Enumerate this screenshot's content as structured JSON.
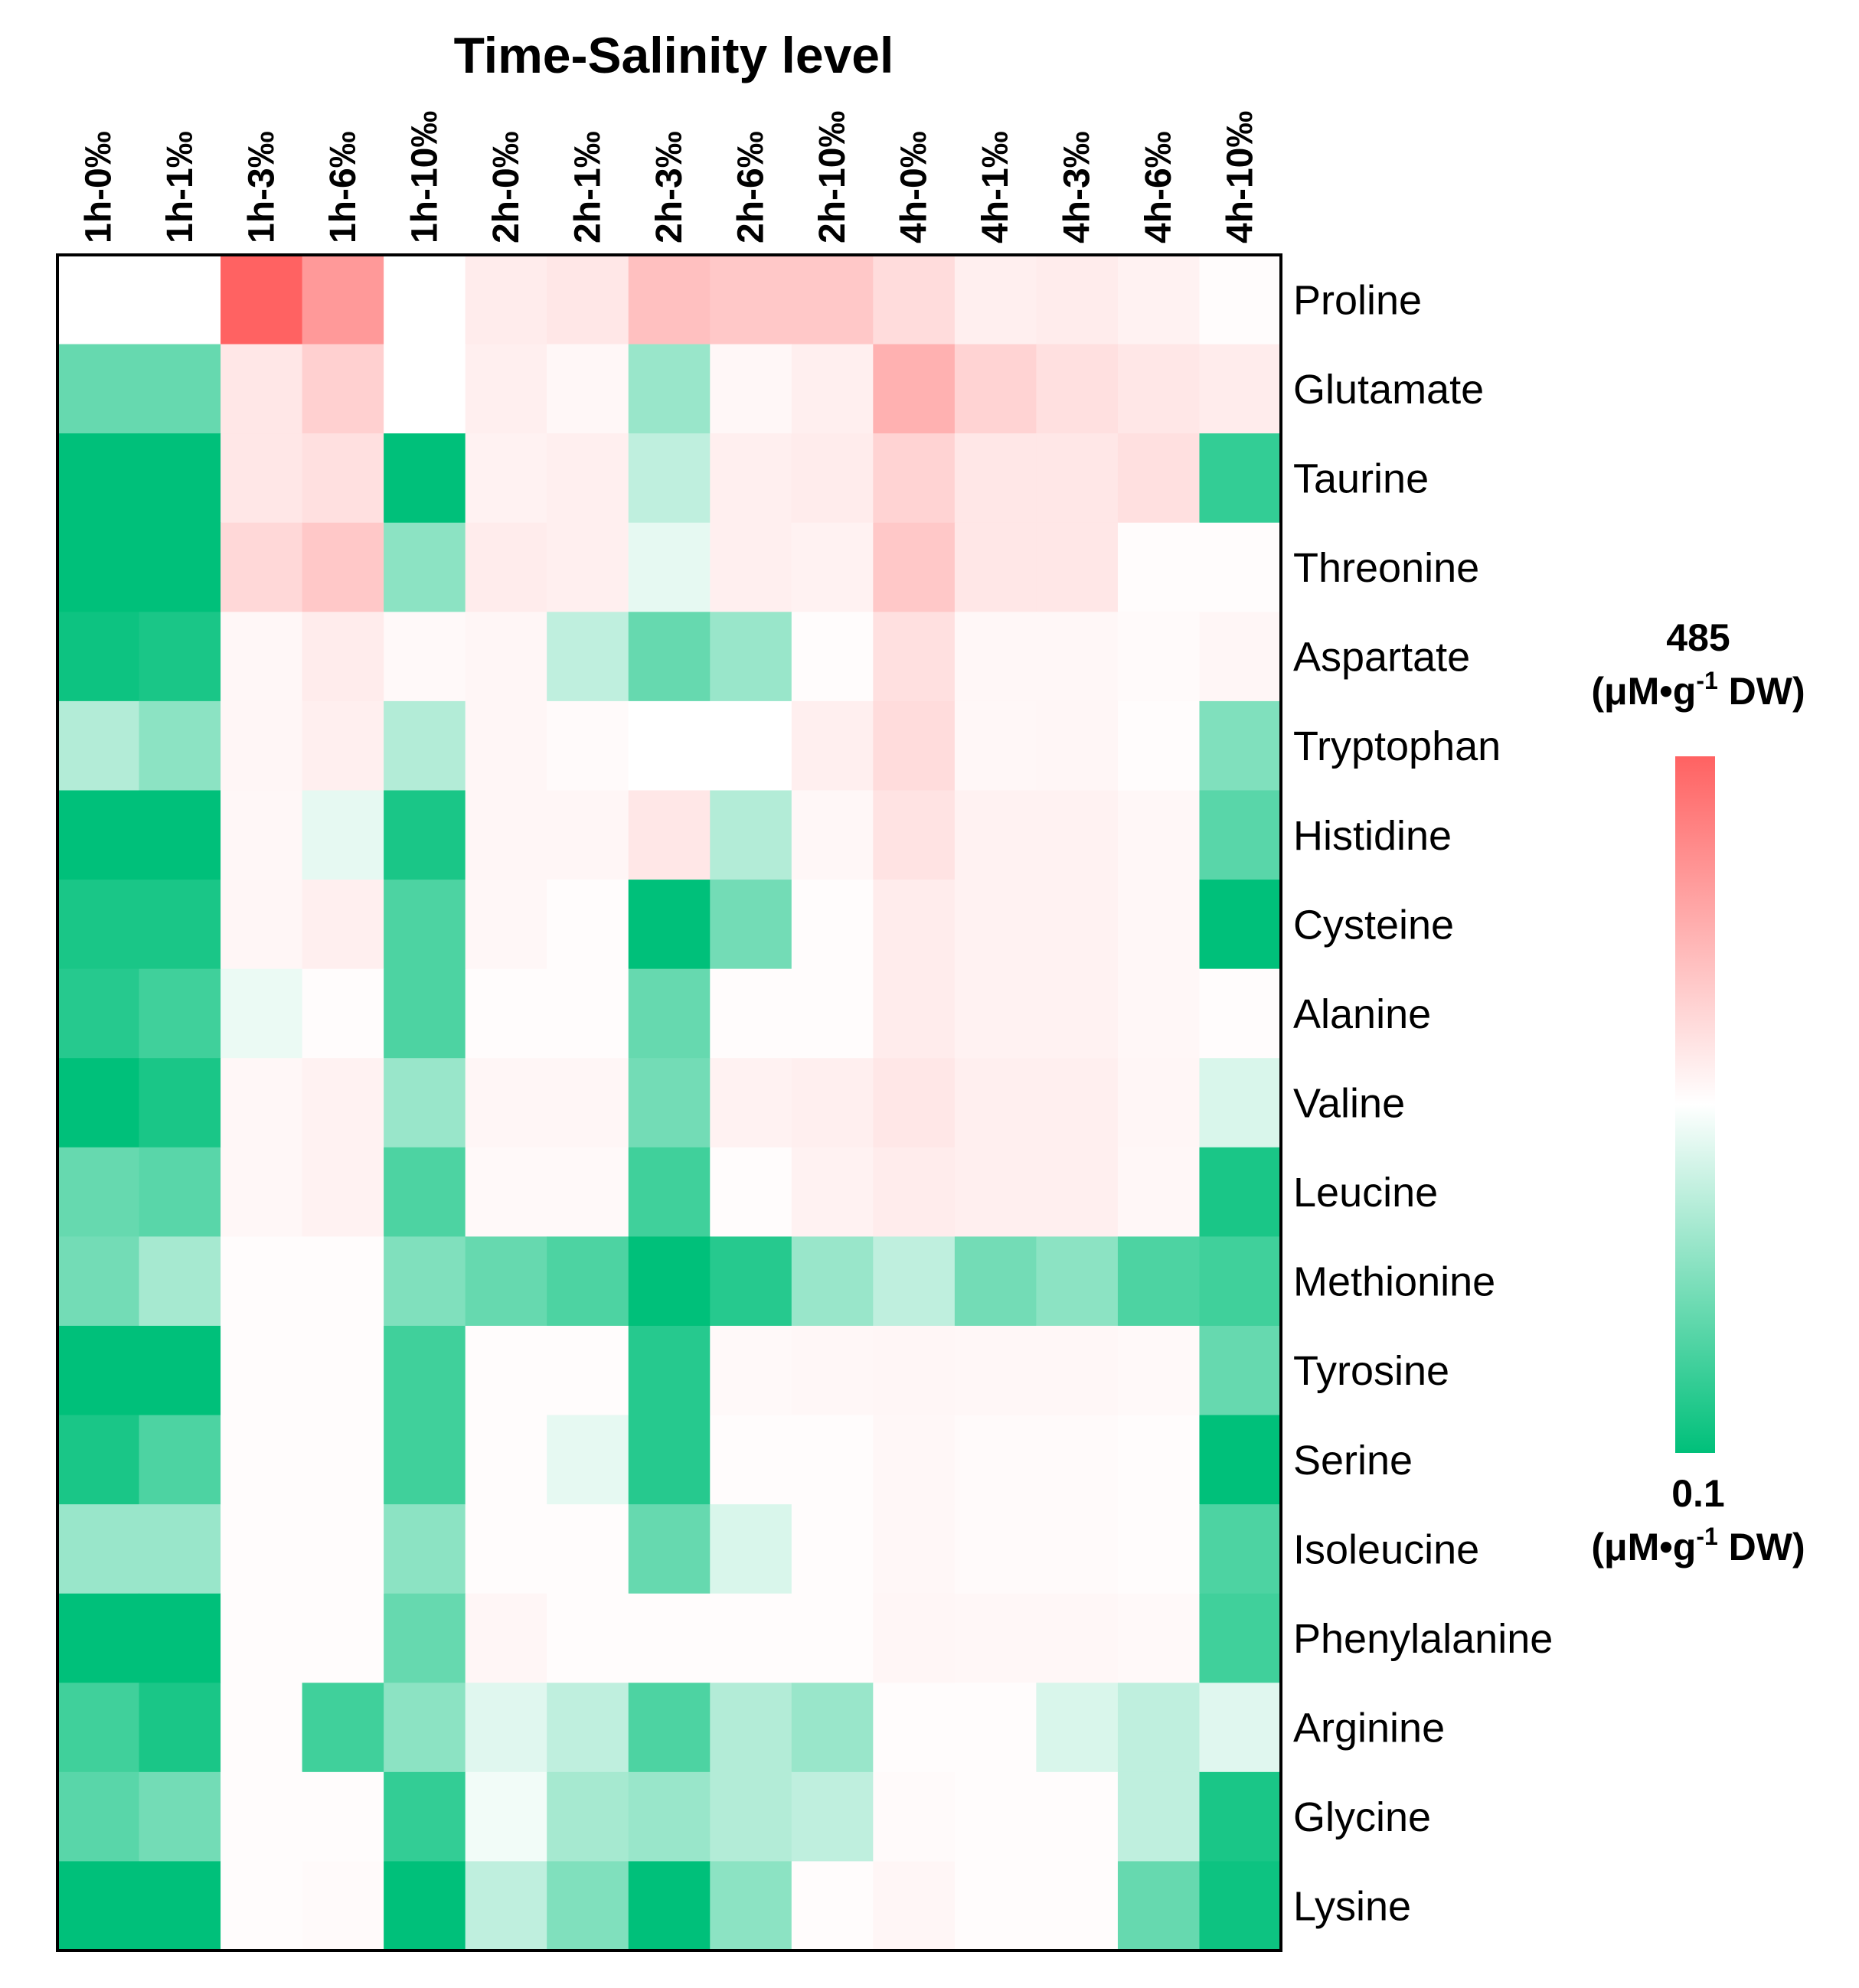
{
  "chart_data": {
    "type": "heatmap",
    "title": "Time-Salinity level",
    "columns": [
      "1h-0‰",
      "1h-1‰",
      "1h-3‰",
      "1h-6‰",
      "1h-10‰",
      "2h-0‰",
      "2h-1‰",
      "2h-3‰",
      "2h-6‰",
      "2h-10‰",
      "4h-0‰",
      "4h-1‰",
      "4h-3‰",
      "4h-6‰",
      "4h-10‰"
    ],
    "rows": [
      "Proline",
      "Glutamate",
      "Taurine",
      "Threonine",
      "Aspartate",
      "Tryptophan",
      "Histidine",
      "Cysteine",
      "Alanine",
      "Valine",
      "Leucine",
      "Methionine",
      "Tyrosine",
      "Serine",
      "Isoleucine",
      "Phenylalanine",
      "Arginine",
      "Glycine",
      "Lysine"
    ],
    "scale_note": "Relative color intensity from -1 (minimum, green) to +1 (maximum, red); 0 = white (midpoint).",
    "values": [
      [
        0.0,
        0.0,
        1.0,
        0.65,
        0.0,
        0.12,
        0.15,
        0.4,
        0.35,
        0.35,
        0.22,
        0.1,
        0.12,
        0.08,
        0.02
      ],
      [
        -0.6,
        -0.6,
        0.15,
        0.3,
        0.0,
        0.1,
        0.05,
        -0.4,
        0.05,
        0.1,
        0.5,
        0.28,
        0.2,
        0.15,
        0.12
      ],
      [
        -1.0,
        -1.0,
        0.15,
        0.2,
        -1.0,
        0.08,
        0.1,
        -0.25,
        0.1,
        0.12,
        0.28,
        0.15,
        0.15,
        0.2,
        -0.8
      ],
      [
        -1.0,
        -1.0,
        0.25,
        0.35,
        -0.45,
        0.12,
        0.1,
        -0.1,
        0.1,
        0.08,
        0.35,
        0.15,
        0.15,
        0.02,
        0.02
      ],
      [
        -0.95,
        -0.9,
        0.05,
        0.12,
        0.04,
        0.06,
        -0.25,
        -0.6,
        -0.4,
        0.02,
        0.2,
        0.05,
        0.05,
        0.03,
        0.06
      ],
      [
        -0.3,
        -0.45,
        0.06,
        0.1,
        -0.3,
        0.06,
        0.03,
        0.0,
        0.0,
        0.1,
        0.22,
        0.05,
        0.06,
        0.02,
        -0.5
      ],
      [
        -1.0,
        -1.0,
        0.05,
        -0.1,
        -0.9,
        0.06,
        0.06,
        0.15,
        -0.3,
        0.05,
        0.18,
        0.08,
        0.08,
        0.05,
        -0.65
      ],
      [
        -0.9,
        -0.9,
        0.06,
        0.1,
        -0.7,
        0.05,
        0.02,
        -1.0,
        -0.55,
        0.02,
        0.12,
        0.08,
        0.08,
        0.05,
        -1.0
      ],
      [
        -0.85,
        -0.75,
        -0.08,
        0.02,
        -0.7,
        0.02,
        0.02,
        -0.6,
        0.02,
        0.02,
        0.12,
        0.08,
        0.08,
        0.05,
        0.02
      ],
      [
        -1.0,
        -0.9,
        0.05,
        0.08,
        -0.4,
        0.06,
        0.06,
        -0.55,
        0.08,
        0.1,
        0.15,
        0.1,
        0.1,
        0.06,
        -0.15
      ],
      [
        -0.6,
        -0.65,
        0.05,
        0.08,
        -0.7,
        0.04,
        0.04,
        -0.75,
        0.02,
        0.08,
        0.12,
        0.1,
        0.1,
        0.05,
        -0.9
      ],
      [
        -0.55,
        -0.35,
        0.02,
        0.02,
        -0.5,
        -0.6,
        -0.7,
        -1.0,
        -0.85,
        -0.4,
        -0.25,
        -0.55,
        -0.45,
        -0.7,
        -0.75
      ],
      [
        -1.0,
        -1.0,
        0.02,
        0.02,
        -0.75,
        0.02,
        0.02,
        -0.85,
        0.04,
        0.05,
        0.06,
        0.05,
        0.05,
        0.04,
        -0.6
      ],
      [
        -0.9,
        -0.7,
        0.02,
        0.02,
        -0.75,
        0.02,
        -0.1,
        -0.85,
        0.02,
        0.02,
        0.05,
        0.03,
        0.03,
        0.02,
        -1.0
      ],
      [
        -0.4,
        -0.4,
        0.02,
        0.02,
        -0.45,
        0.02,
        0.02,
        -0.6,
        -0.15,
        0.02,
        0.05,
        0.03,
        0.03,
        0.02,
        -0.7
      ],
      [
        -1.0,
        -1.0,
        0.02,
        0.02,
        -0.6,
        0.06,
        0.02,
        0.02,
        0.02,
        0.02,
        0.06,
        0.05,
        0.05,
        0.04,
        -0.75
      ],
      [
        -0.75,
        -0.9,
        0.02,
        -0.75,
        -0.45,
        -0.12,
        -0.25,
        -0.7,
        -0.3,
        -0.4,
        0.02,
        0.02,
        -0.15,
        -0.25,
        -0.12
      ],
      [
        -0.65,
        -0.55,
        0.02,
        0.02,
        -0.8,
        -0.05,
        -0.35,
        -0.4,
        -0.3,
        -0.25,
        0.03,
        0.02,
        0.02,
        -0.25,
        -0.9
      ],
      [
        -1.0,
        -1.0,
        0.02,
        0.03,
        -1.0,
        -0.25,
        -0.5,
        -1.0,
        -0.45,
        0.02,
        0.06,
        0.02,
        0.02,
        -0.6,
        -0.95
      ]
    ],
    "colorscale": {
      "min_color": "#00c07a",
      "mid_color": "#ffffff",
      "max_color": "#ff6262"
    },
    "legend": {
      "max_value": "485",
      "min_value": "0.1",
      "unit_prefix": "(μM•g",
      "unit_sup": "-1",
      "unit_suffix": " DW)",
      "placement": "right"
    }
  }
}
